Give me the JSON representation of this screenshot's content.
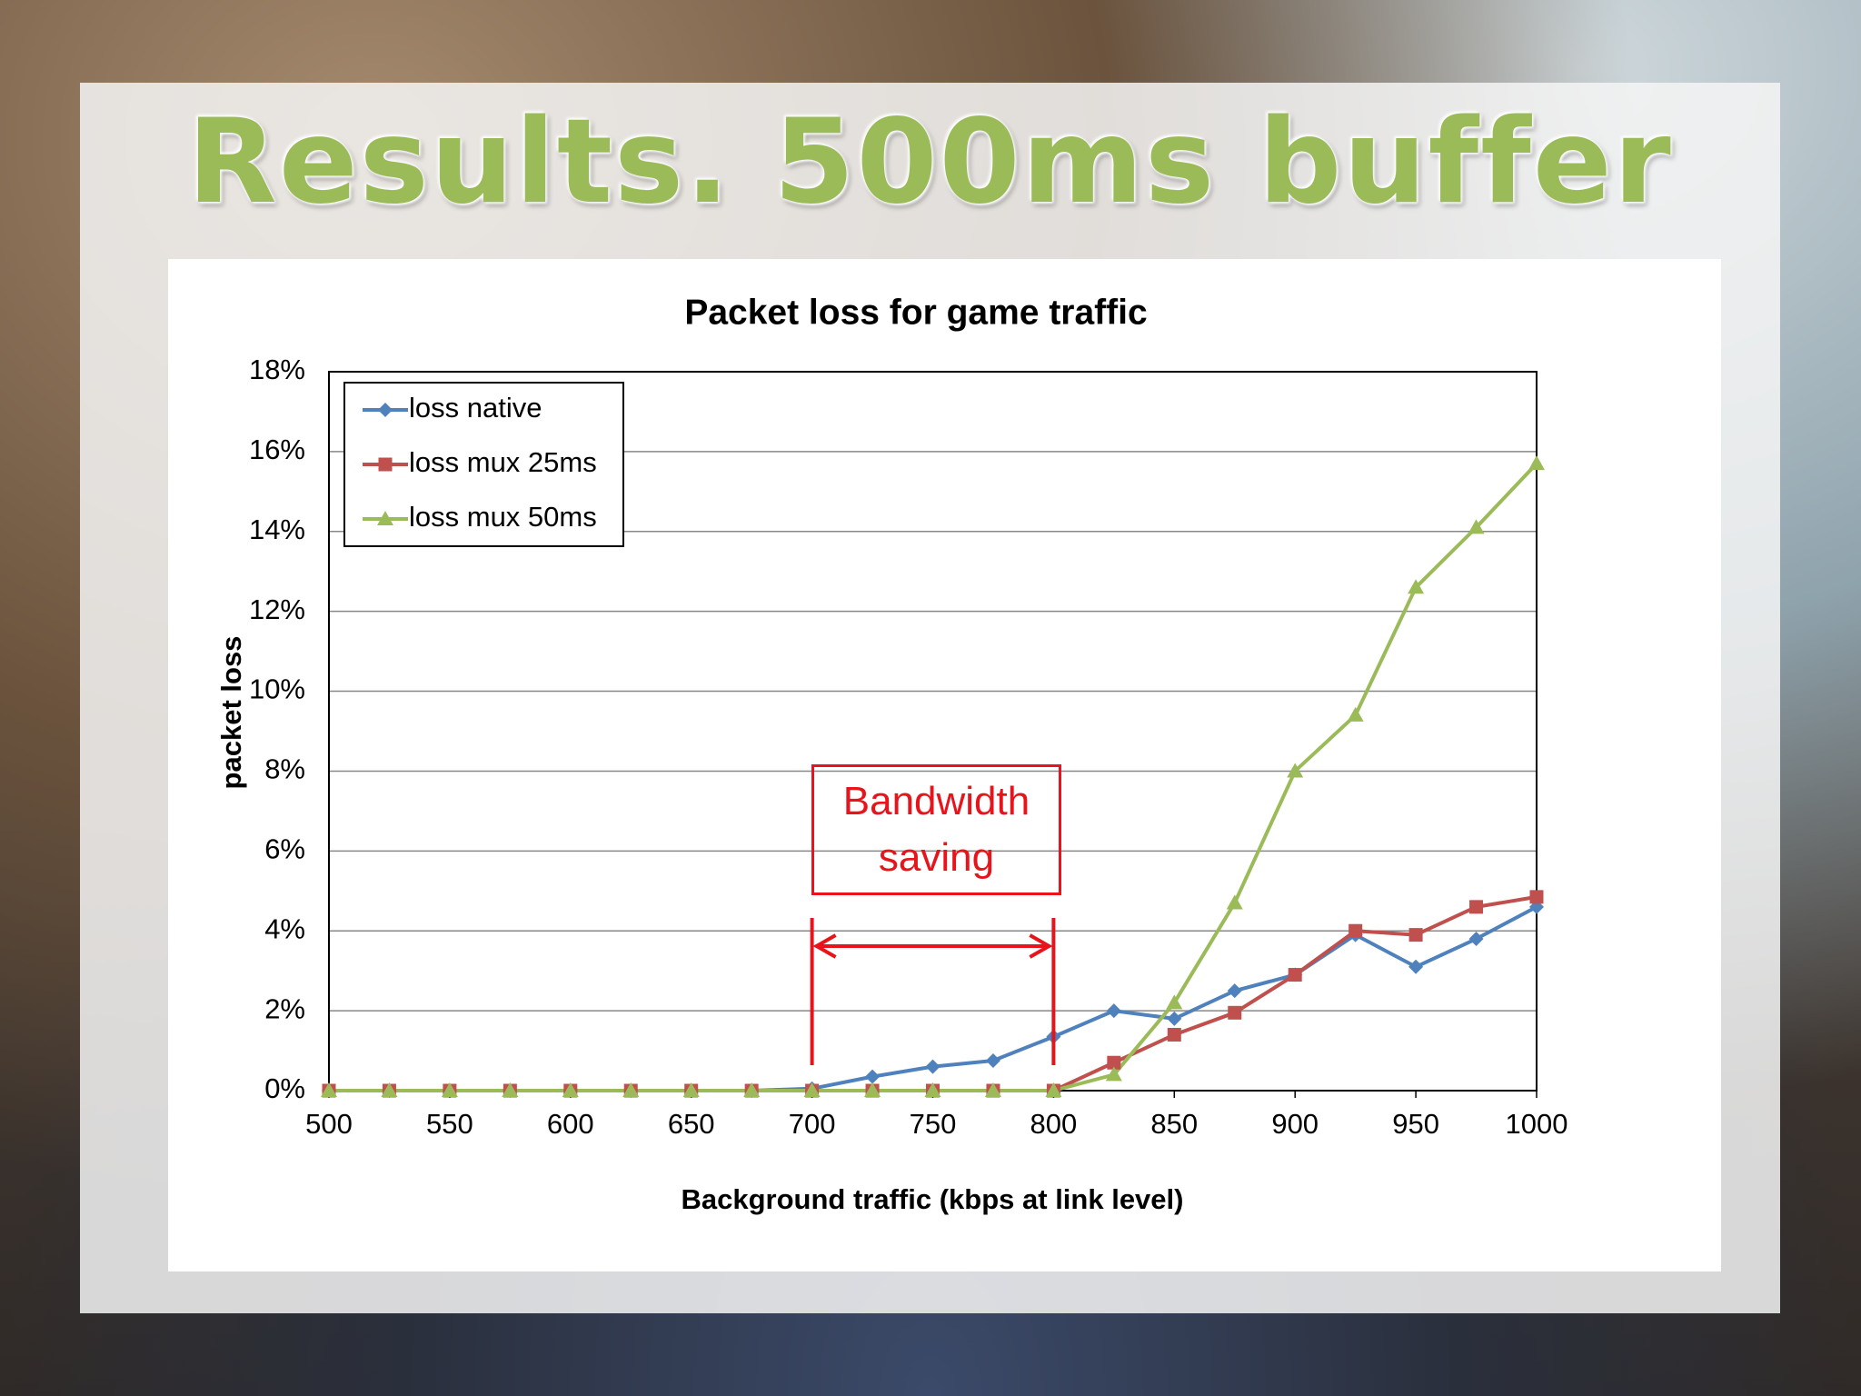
{
  "slide_title": "Results. 500ms buffer",
  "chart_data": {
    "type": "line",
    "title": "Packet loss for game traffic",
    "x_label": "Background traffic (kbps at link level)",
    "y_label": "packet loss",
    "x": [
      500,
      525,
      550,
      575,
      600,
      625,
      650,
      675,
      700,
      725,
      750,
      775,
      800,
      825,
      850,
      875,
      900,
      925,
      950,
      975,
      1000
    ],
    "series": [
      {
        "name": "loss native",
        "color": "#4f81bd",
        "marker": "diamond",
        "values": [
          0,
          0,
          0,
          0,
          0,
          0,
          0,
          0,
          0.05,
          0.35,
          0.6,
          0.75,
          1.35,
          2.0,
          1.8,
          2.5,
          2.9,
          3.9,
          3.1,
          3.8,
          4.6
        ]
      },
      {
        "name": "loss mux 25ms",
        "color": "#c0504d",
        "marker": "square",
        "values": [
          0,
          0,
          0,
          0,
          0,
          0,
          0,
          0,
          0,
          0,
          0,
          0,
          0,
          0.7,
          1.4,
          1.95,
          2.9,
          4.0,
          3.9,
          4.6,
          4.85
        ]
      },
      {
        "name": "loss mux 50ms",
        "color": "#9bbb59",
        "marker": "triangle",
        "values": [
          0,
          0,
          0,
          0,
          0,
          0,
          0,
          0,
          0,
          0,
          0,
          0,
          0,
          0.4,
          2.2,
          4.7,
          8.0,
          9.4,
          12.6,
          14.1,
          15.7
        ]
      }
    ],
    "xlim": [
      500,
      1000
    ],
    "xticks": [
      500,
      550,
      600,
      650,
      700,
      750,
      800,
      850,
      900,
      950,
      1000
    ],
    "ylim": [
      0,
      18
    ],
    "yticks": [
      {
        "value": 0,
        "label": "0%"
      },
      {
        "value": 2,
        "label": "2%"
      },
      {
        "value": 4,
        "label": "4%"
      },
      {
        "value": 6,
        "label": "6%"
      },
      {
        "value": 8,
        "label": "8%"
      },
      {
        "value": 10,
        "label": "10%"
      },
      {
        "value": 12,
        "label": "12%"
      },
      {
        "value": 14,
        "label": "14%"
      },
      {
        "value": 16,
        "label": "16%"
      },
      {
        "value": 18,
        "label": "18%"
      }
    ],
    "grid": true,
    "legend": "upper left",
    "annotation": "Bandwidth saving",
    "annotation_color": "#e8131b",
    "annotation_span": [
      700,
      800
    ]
  }
}
